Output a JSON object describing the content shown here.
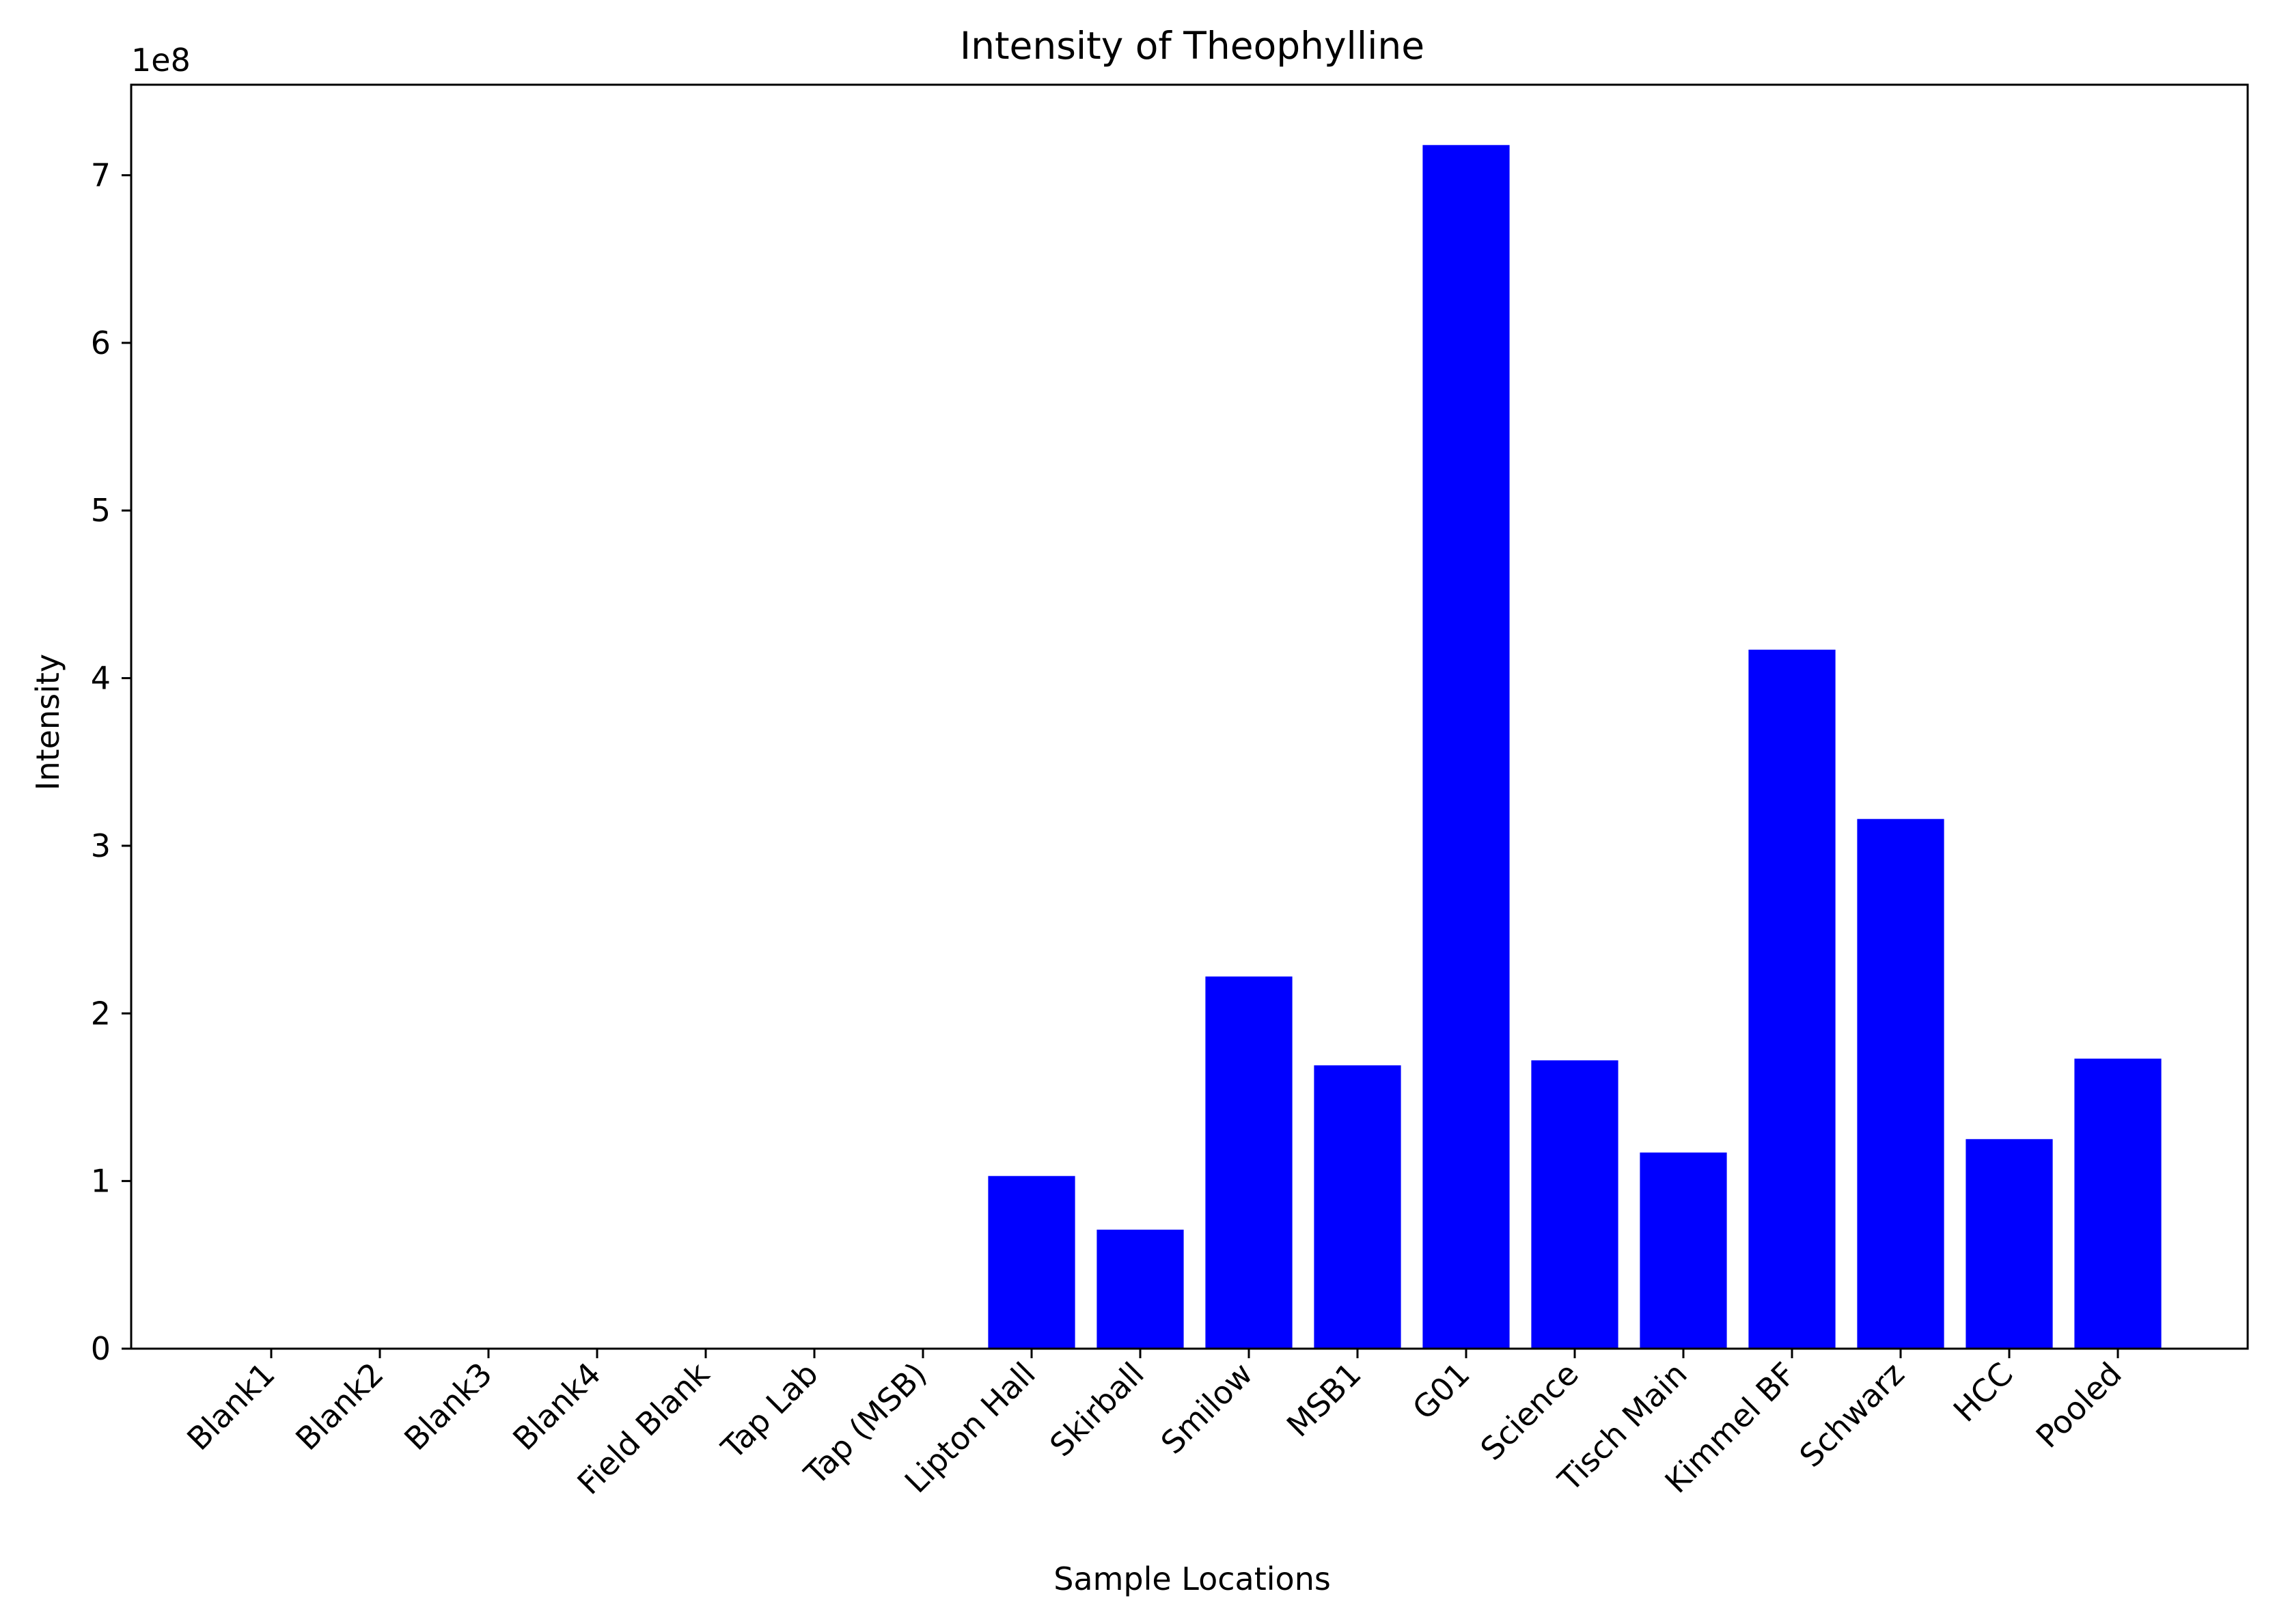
{
  "chart_data": {
    "type": "bar",
    "title": "Intensity of Theophylline",
    "xlabel": "Sample Locations",
    "ylabel": "Intensity",
    "y_offset_label": "1e8",
    "y_scale": 100000000,
    "ylim": [
      0,
      7.54
    ],
    "yticks": [
      0,
      1,
      2,
      3,
      4,
      5,
      6,
      7
    ],
    "grid": false,
    "bar_color": "#0000ff",
    "categories": [
      "Blank1",
      "Blank2",
      "Blank3",
      "Blank4",
      "Field Blank",
      "Tap Lab",
      "Tap (MSB)",
      "Lipton Hall",
      "Skirball",
      "Smilow",
      "MSB1",
      "G01",
      "Science",
      "Tisch Main",
      "Kimmel BF",
      "Schwarz",
      "HCC",
      "Pooled"
    ],
    "values": [
      0,
      0,
      0,
      0,
      0,
      0,
      0,
      1.03,
      0.71,
      2.22,
      1.69,
      7.18,
      1.72,
      1.17,
      4.17,
      3.16,
      1.25,
      1.73
    ]
  }
}
